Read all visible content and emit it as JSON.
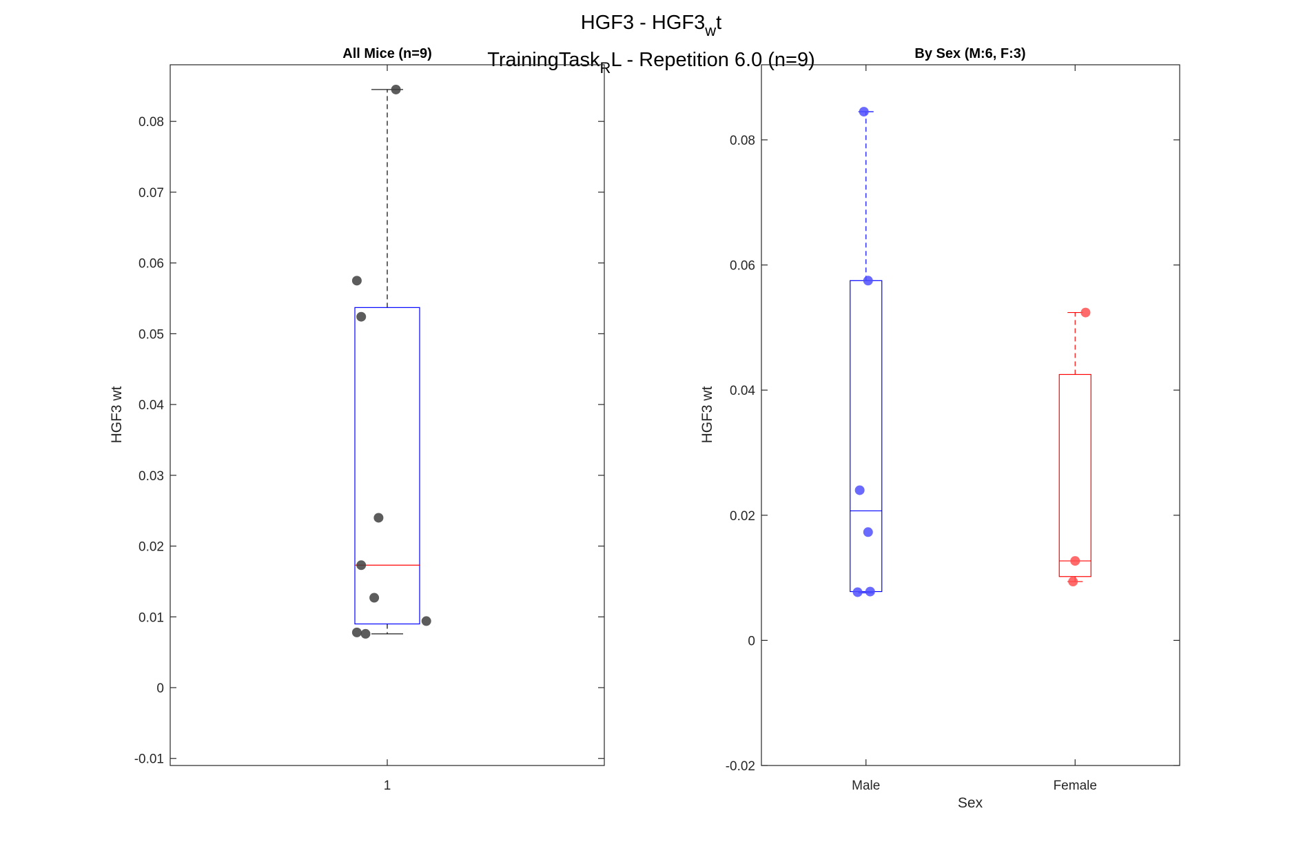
{
  "figure": {
    "title_line1_main": "HGF3 - HGF3",
    "title_line1_sub": "w",
    "title_line1_tail": "t",
    "title_line2_main": "TrainingTask",
    "title_line2_sub": "R",
    "title_line2_tail": "L - Repetition 6.0 (n=9)"
  },
  "chart_data": [
    {
      "type": "box",
      "title": "All Mice (n=9)",
      "xlabel": "",
      "ylabel": "HGF3 wt",
      "ylim": [
        -0.011,
        0.088
      ],
      "yticks": [
        -0.01,
        0,
        0.01,
        0.02,
        0.03,
        0.04,
        0.05,
        0.06,
        0.07,
        0.08
      ],
      "ytick_labels": [
        "-0.01",
        "0",
        "0.01",
        "0.02",
        "0.03",
        "0.04",
        "0.05",
        "0.06",
        "0.07",
        "0.08"
      ],
      "categories": [
        "1"
      ],
      "box_color": "#0000ff",
      "median_color": "#ff0000",
      "whisker_color": "#000000",
      "boxes": [
        {
          "category": "1",
          "q1": 0.009,
          "median": 0.0173,
          "q3": 0.0537,
          "whisker_low": 0.0076,
          "whisker_high": 0.0845
        }
      ],
      "points_color": "#404040",
      "points": [
        {
          "x": 1.02,
          "y": 0.0845
        },
        {
          "x": 0.93,
          "y": 0.0575
        },
        {
          "x": 0.94,
          "y": 0.0524
        },
        {
          "x": 0.98,
          "y": 0.024
        },
        {
          "x": 0.94,
          "y": 0.0173
        },
        {
          "x": 0.97,
          "y": 0.0127
        },
        {
          "x": 1.09,
          "y": 0.0094
        },
        {
          "x": 0.93,
          "y": 0.0078
        },
        {
          "x": 0.95,
          "y": 0.0076
        }
      ]
    },
    {
      "type": "box",
      "title": "By Sex (M:6, F:3)",
      "xlabel": "Sex",
      "ylabel": "HGF3 wt",
      "ylim": [
        -0.02,
        0.092
      ],
      "yticks": [
        -0.02,
        0,
        0.02,
        0.04,
        0.06,
        0.08
      ],
      "ytick_labels": [
        "-0.02",
        "0",
        "0.02",
        "0.04",
        "0.06",
        "0.08"
      ],
      "categories": [
        "Male",
        "Female"
      ],
      "boxes": [
        {
          "category": "Male",
          "color": "#0000ff",
          "q1": 0.0078,
          "median": 0.0207,
          "q3": 0.0575,
          "whisker_low": 0.0076,
          "whisker_high": 0.0845
        },
        {
          "category": "Female",
          "color": "#ff0000",
          "q1": 0.0102,
          "median": 0.0127,
          "q3": 0.0425,
          "whisker_low": 0.0094,
          "whisker_high": 0.0524
        }
      ],
      "points": [
        {
          "group": "Male",
          "color": "#5050ff",
          "x": 0.99,
          "y": 0.0845
        },
        {
          "group": "Male",
          "color": "#5050ff",
          "x": 1.01,
          "y": 0.0575
        },
        {
          "group": "Male",
          "color": "#5050ff",
          "x": 0.97,
          "y": 0.024
        },
        {
          "group": "Male",
          "color": "#5050ff",
          "x": 1.01,
          "y": 0.0173
        },
        {
          "group": "Male",
          "color": "#5050ff",
          "x": 0.96,
          "y": 0.0077
        },
        {
          "group": "Male",
          "color": "#5050ff",
          "x": 1.02,
          "y": 0.0078
        },
        {
          "group": "Female",
          "color": "#ff5050",
          "x": 2.05,
          "y": 0.0524
        },
        {
          "group": "Female",
          "color": "#ff5050",
          "x": 2.0,
          "y": 0.0127
        },
        {
          "group": "Female",
          "color": "#ff5050",
          "x": 1.99,
          "y": 0.0094
        }
      ]
    }
  ]
}
